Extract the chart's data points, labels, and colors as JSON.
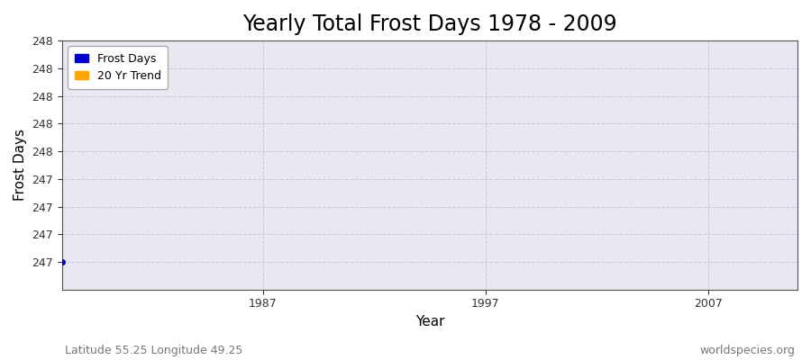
{
  "title": "Yearly Total Frost Days 1978 - 2009",
  "xlabel": "Year",
  "ylabel": "Frost Days",
  "legend_labels": [
    "Frost Days",
    "20 Yr Trend"
  ],
  "legend_colors": [
    "#0000cc",
    "#ffa500"
  ],
  "years": [
    1978
  ],
  "frost_days": [
    247.0
  ],
  "xlim": [
    1978,
    2011
  ],
  "ylim": [
    246.85,
    248.2
  ],
  "ytick_positions": [
    247.0,
    247.15,
    247.3,
    247.45,
    247.6,
    247.75,
    247.9,
    248.05,
    248.2
  ],
  "ytick_labels": [
    "247",
    "247",
    "247",
    "247",
    "248",
    "248",
    "248",
    "248",
    "248"
  ],
  "xticks": [
    1987,
    1997,
    2007
  ],
  "plot_bg_color": "#e8e8f0",
  "grid_color": "#c8c8d8",
  "point_color": "#0000cc",
  "point_size": 4,
  "footer_left": "Latitude 55.25 Longitude 49.25",
  "footer_right": "worldspecies.org",
  "title_fontsize": 17,
  "axis_label_fontsize": 11,
  "tick_fontsize": 9,
  "footer_fontsize": 9,
  "spine_color": "#555555"
}
